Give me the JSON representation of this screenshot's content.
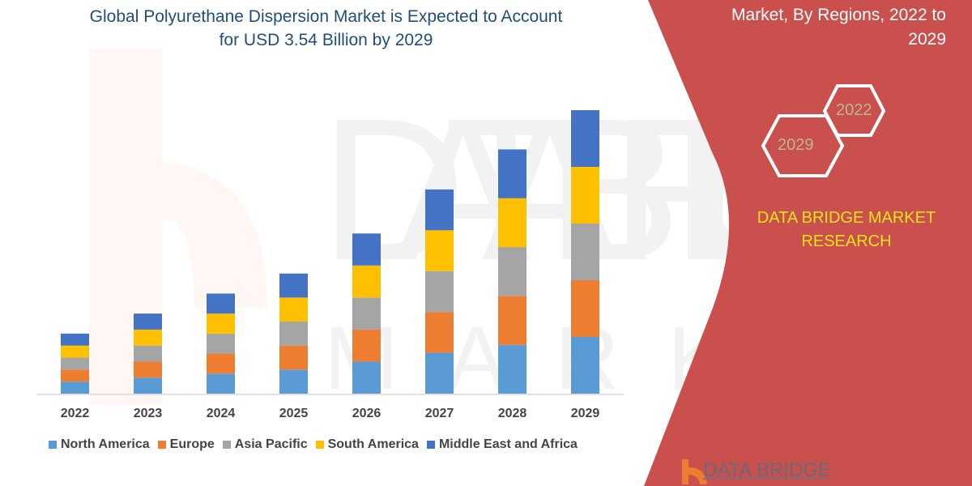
{
  "header": {
    "title_line1": "Global Polyurethane Dispersion Market is Expected to Account",
    "title_line2": "for USD 3.54 Billion by 2029",
    "right_title_line1": "Market, By Regions, 2022 to",
    "right_title_line2": "2029"
  },
  "panel": {
    "hex_left": "2029",
    "hex_right": "2022",
    "brand_line1": "DATA BRIDGE MARKET",
    "brand_line2": "RESEARCH",
    "logo_text": "DATA BRIDGE",
    "panel_color": "#c9504c",
    "brand_color": "#f5e31a"
  },
  "chart_data": {
    "type": "bar",
    "stacked": true,
    "title": "Global Polyurethane Dispersion Market is Expected to Account for USD 3.54 Billion by 2029",
    "xlabel": "",
    "ylabel": "",
    "grid": false,
    "legend_position": "bottom",
    "categories": [
      "2022",
      "2023",
      "2024",
      "2025",
      "2026",
      "2027",
      "2028",
      "2029"
    ],
    "series": [
      {
        "name": "North America",
        "color": "#5b9bd5",
        "values": [
          0.15,
          0.2,
          0.25,
          0.3,
          0.4,
          0.51,
          0.61,
          0.708
        ]
      },
      {
        "name": "Europe",
        "color": "#ed7d31",
        "values": [
          0.15,
          0.2,
          0.25,
          0.3,
          0.4,
          0.51,
          0.61,
          0.708
        ]
      },
      {
        "name": "Asia Pacific",
        "color": "#a5a5a5",
        "values": [
          0.15,
          0.2,
          0.25,
          0.3,
          0.4,
          0.51,
          0.61,
          0.708
        ]
      },
      {
        "name": "South America",
        "color": "#ffc000",
        "values": [
          0.15,
          0.2,
          0.25,
          0.3,
          0.4,
          0.51,
          0.61,
          0.708
        ]
      },
      {
        "name": "Middle East and Africa",
        "color": "#4472c4",
        "values": [
          0.15,
          0.2,
          0.25,
          0.3,
          0.4,
          0.51,
          0.61,
          0.708
        ]
      }
    ]
  }
}
